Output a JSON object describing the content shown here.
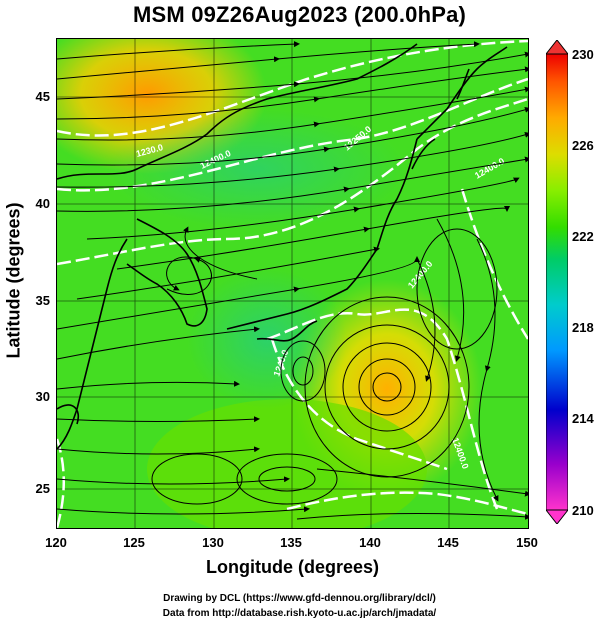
{
  "title": "MSM 09Z26Aug2023 (200.0hPa)",
  "axes": {
    "xlabel": "Longitude (degrees)",
    "ylabel": "Latitude  (degrees)",
    "xticks": [
      "120",
      "125",
      "130",
      "135",
      "140",
      "145",
      "150"
    ],
    "yticks": [
      "45",
      "40",
      "35",
      "30",
      "25"
    ]
  },
  "colorbar": {
    "ticks": [
      "230",
      "226",
      "222",
      "218",
      "214",
      "210"
    ],
    "range": [
      210,
      230
    ],
    "colors": [
      "#ff33cc",
      "#9900cc",
      "#0000cc",
      "#0099ff",
      "#00cccc",
      "#00cc66",
      "#33dd00",
      "#88ee00",
      "#dddd00",
      "#ffaa00",
      "#ff5500",
      "#ee0000"
    ]
  },
  "contour_labels": [
    "1230.0",
    "12400.0",
    "12250.0",
    "12400.0",
    "1240.0",
    "12400.0",
    "12400.0"
  ],
  "map": {
    "lon_range": [
      120,
      150
    ],
    "lat_range": [
      22.5,
      47.5
    ],
    "land_outline_color": "#000000",
    "contour_color": "#ffffff",
    "warm_centers": [
      "Typhoon circulation near 30N 141E",
      "Warm area near 46N 124E"
    ]
  },
  "credits": {
    "line1": "Drawing by DCL (https://www.gfd-dennou.org/library/dcl/)",
    "line2": "Data from http://database.rish.kyoto-u.ac.jp/arch/jmadata/"
  }
}
